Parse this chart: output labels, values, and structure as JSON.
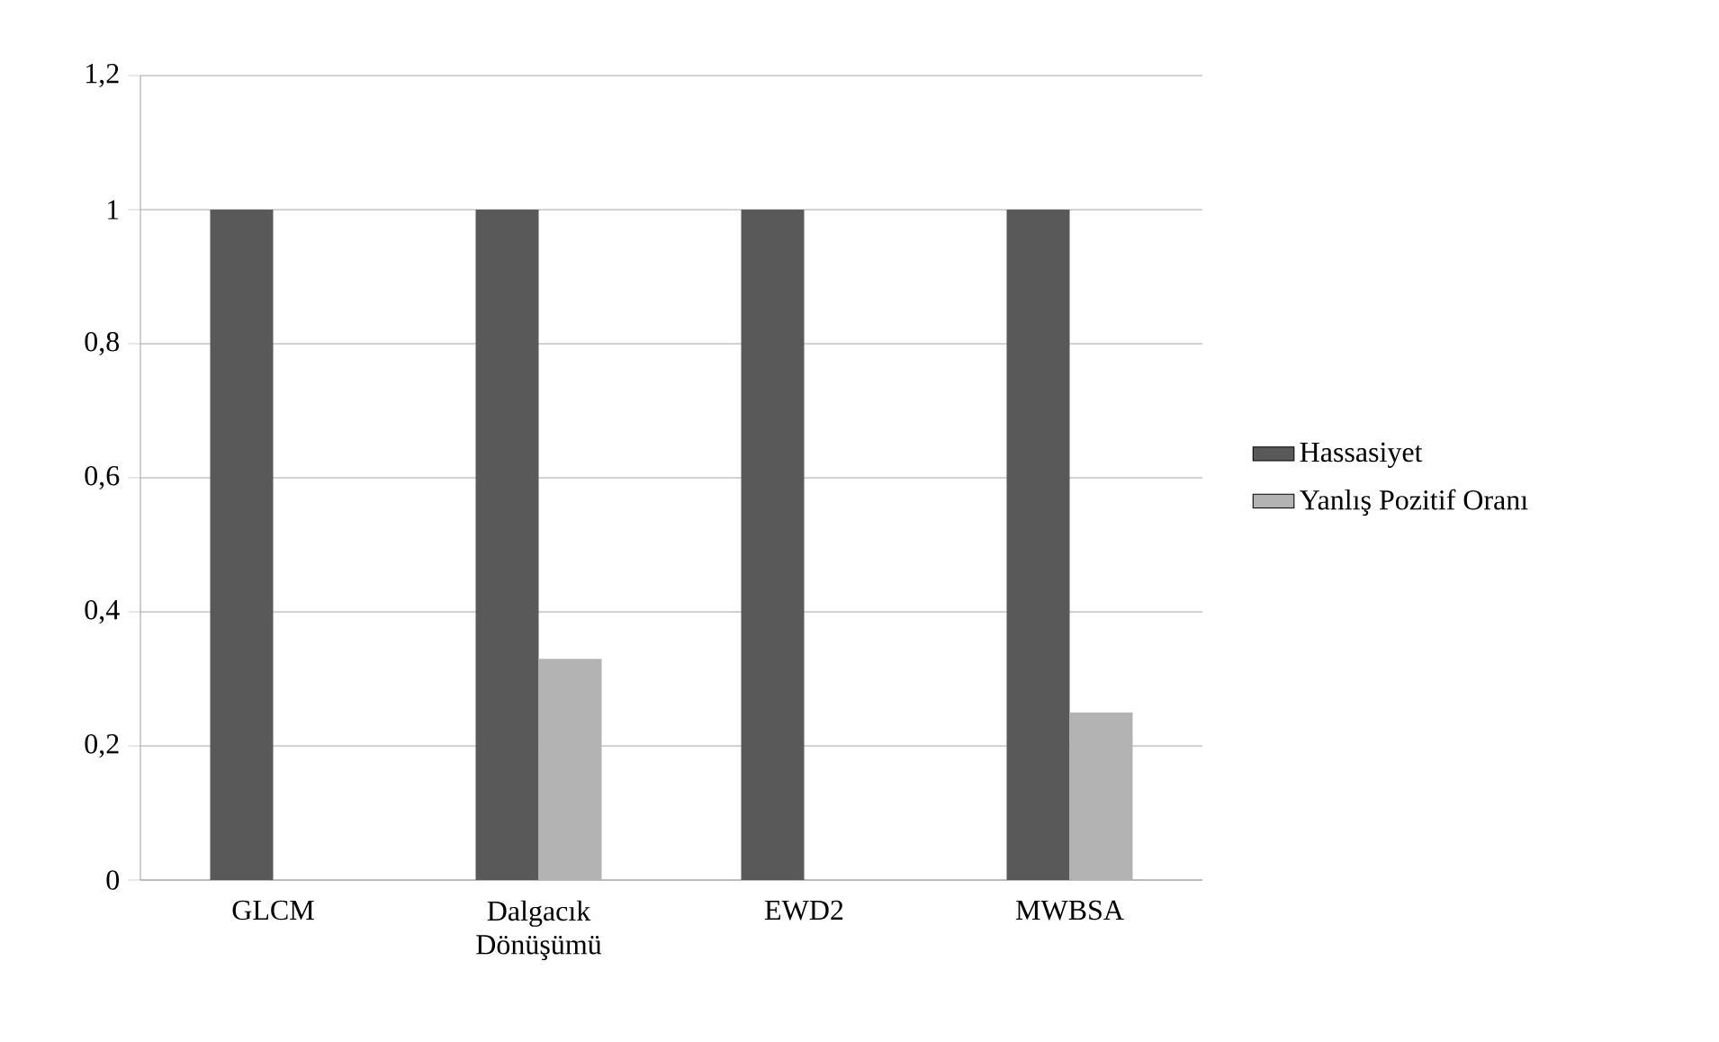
{
  "chart_data": {
    "type": "bar",
    "categories": [
      "GLCM",
      "Dalgacık Dönüşümü",
      "EWD2",
      "MWBSA"
    ],
    "series": [
      {
        "name": "Hassasiyet",
        "color": "#595959",
        "values": [
          1,
          1,
          1,
          1
        ]
      },
      {
        "name": "Yanlış Pozitif Oranı",
        "color": "#b3b3b3",
        "values": [
          0,
          0.33,
          0,
          0.25
        ]
      }
    ],
    "ylim": [
      0,
      1.2
    ],
    "yticks": [
      0,
      {
        "value": 0.2,
        "label": "0,2"
      },
      {
        "value": 0.4,
        "label": "0,4"
      },
      {
        "value": 0.6,
        "label": "0,6"
      },
      {
        "value": 0.8,
        "label": "0,8"
      },
      1,
      {
        "value": 1.2,
        "label": "1,2"
      }
    ],
    "grid": "y",
    "legend": "right"
  }
}
